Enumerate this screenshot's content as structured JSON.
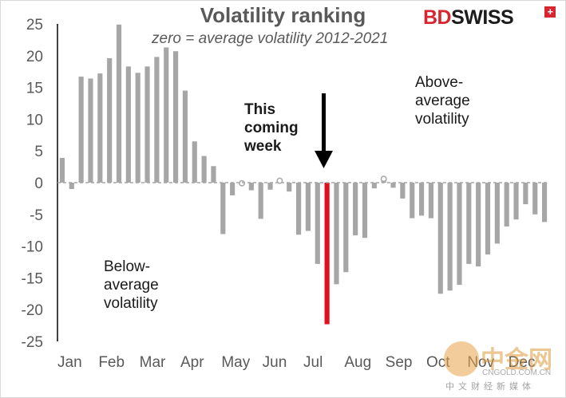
{
  "title": "Volatility ranking",
  "subtitle": "zero = average volatility 2012-2021",
  "logo": {
    "part1": "BD",
    "part2": "SWISS",
    "mark": "+"
  },
  "annotations": {
    "this_week_1": "This",
    "this_week_2": "coming",
    "this_week_3": "week",
    "above_1": "Above-",
    "above_2": "average",
    "above_3": "volatility",
    "below_1": "Below-",
    "below_2": "average",
    "below_3": "volatility"
  },
  "watermark": {
    "brand": "中金网",
    "url": "CNGOLD.COM.CN",
    "tagline": "中文财经新媒体"
  },
  "colors": {
    "bar": "#a6a6a6",
    "highlight": "#e0101f",
    "axis": "#000000",
    "text": "#595959"
  },
  "chart_data": {
    "type": "bar",
    "title": "Volatility ranking",
    "subtitle": "zero = average volatility 2012-2021",
    "xlabel": "",
    "ylabel": "",
    "ylim": [
      -25,
      25
    ],
    "yticks": [
      25,
      20,
      15,
      10,
      5,
      0,
      -5,
      -10,
      -15,
      -20,
      -25
    ],
    "month_labels": [
      "Jan",
      "Feb",
      "Mar",
      "Apr",
      "May",
      "Jun",
      "Jul",
      "Aug",
      "Sep",
      "Oct",
      "Nov",
      "Dec"
    ],
    "grid": false,
    "legend": "none",
    "highlight_index": 28,
    "values": [
      3.9,
      -1.0,
      16.7,
      16.4,
      17.2,
      19.6,
      24.9,
      18.3,
      17.3,
      18.3,
      19.8,
      21.3,
      20.7,
      14.5,
      6.5,
      4.2,
      2.6,
      -8.1,
      -2.0,
      -0.1,
      -1.2,
      -5.7,
      -1.1,
      0.3,
      -1.4,
      -8.2,
      -7.6,
      -12.8,
      -22.3,
      -16.0,
      -14.1,
      -8.3,
      -8.7,
      -0.9,
      0.6,
      -0.8,
      -2.5,
      -5.6,
      -5.2,
      -5.6,
      -17.5,
      -17.0,
      -16.1,
      -12.8,
      -13.2,
      -11.3,
      -9.6,
      -6.9,
      -5.8,
      -3.4,
      -5.0,
      -6.2
    ]
  }
}
